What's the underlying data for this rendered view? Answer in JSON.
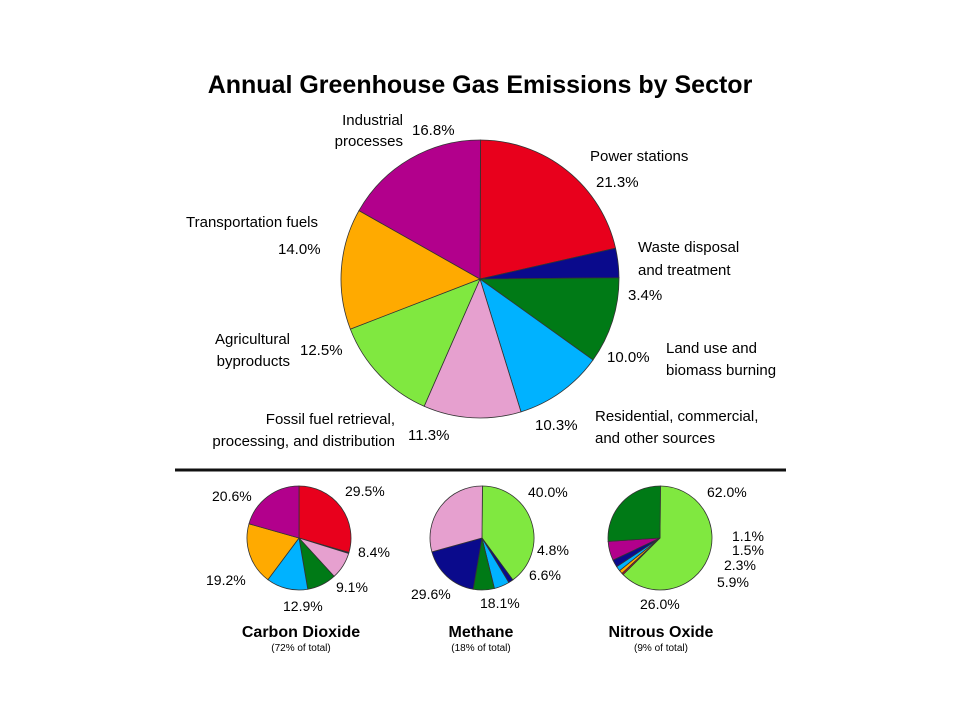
{
  "chart_data": [
    {
      "type": "pie",
      "title": "Annual Greenhouse Gas Emissions by Sector",
      "slices": [
        {
          "label": "Power stations",
          "value": 21.3,
          "display": "21.3%",
          "color": "#e8001c"
        },
        {
          "label": "Waste disposal and treatment",
          "value": 3.4,
          "display": "3.4%",
          "color": "#0a0a8c"
        },
        {
          "label": "Land use and biomass burning",
          "value": 10.0,
          "display": "10.0%",
          "color": "#007a16"
        },
        {
          "label": "Residential, commercial, and other sources",
          "value": 10.3,
          "display": "10.3%",
          "color": "#00b2ff"
        },
        {
          "label": "Fossil fuel retrieval, processing, and distribution",
          "value": 11.3,
          "display": "11.3%",
          "color": "#e6a0cf"
        },
        {
          "label": "Agricultural byproducts",
          "value": 12.5,
          "display": "12.5%",
          "color": "#80e840"
        },
        {
          "label": "Transportation fuels",
          "value": 14.0,
          "display": "14.0%",
          "color": "#ffaa00"
        },
        {
          "label": "Industrial processes",
          "value": 16.8,
          "display": "16.8%",
          "color": "#b2008c"
        }
      ],
      "label_lines": {
        "power": [
          "Power stations"
        ],
        "waste": [
          "Waste disposal",
          "and treatment"
        ],
        "land": [
          "Land use and",
          "biomass burning"
        ],
        "residential": [
          "Residential, commercial,",
          "and other sources"
        ],
        "fossil": [
          "Fossil fuel retrieval,",
          "processing, and distribution"
        ],
        "agri": [
          "Agricultural",
          "byproducts"
        ],
        "transport": [
          "Transportation fuels"
        ],
        "industrial": [
          "Industrial",
          "processes"
        ]
      }
    },
    {
      "type": "pie",
      "title": "Carbon Dioxide",
      "note": "(72% of total)",
      "slices": [
        {
          "value": 29.5,
          "display": "29.5%",
          "color": "#e8001c"
        },
        {
          "value": 0.3,
          "display": "",
          "color": "#0a0a8c"
        },
        {
          "value": 8.4,
          "display": "8.4%",
          "color": "#e6a0cf"
        },
        {
          "value": 9.1,
          "display": "9.1%",
          "color": "#007a16"
        },
        {
          "value": 12.9,
          "display": "12.9%",
          "color": "#00b2ff"
        },
        {
          "value": 19.2,
          "display": "19.2%",
          "color": "#ffaa00"
        },
        {
          "value": 20.6,
          "display": "20.6%",
          "color": "#b2008c"
        }
      ]
    },
    {
      "type": "pie",
      "title": "Methane",
      "note": "(18% of total)",
      "slices": [
        {
          "value": 40.0,
          "display": "40.0%",
          "color": "#80e840"
        },
        {
          "value": 1.5,
          "display": "",
          "color": "#0a0a8c"
        },
        {
          "value": 4.8,
          "display": "4.8%",
          "color": "#00b2ff"
        },
        {
          "value": 6.6,
          "display": "6.6%",
          "color": "#007a16"
        },
        {
          "value": 18.1,
          "display": "18.1%",
          "color": "#0a0a8c"
        },
        {
          "value": 29.6,
          "display": "29.6%",
          "color": "#e6a0cf"
        }
      ]
    },
    {
      "type": "pie",
      "title": "Nitrous Oxide",
      "note": "(9% of total)",
      "slices": [
        {
          "value": 62.0,
          "display": "62.0%",
          "color": "#80e840"
        },
        {
          "value": 0.5,
          "display": "",
          "color": "#e8001c"
        },
        {
          "value": 1.1,
          "display": "1.1%",
          "color": "#ffaa00"
        },
        {
          "value": 1.5,
          "display": "1.5%",
          "color": "#00b2ff"
        },
        {
          "value": 2.3,
          "display": "2.3%",
          "color": "#0a0a8c"
        },
        {
          "value": 5.9,
          "display": "5.9%",
          "color": "#b2008c"
        },
        {
          "value": 26.0,
          "display": "26.0%",
          "color": "#007a16"
        }
      ]
    }
  ]
}
